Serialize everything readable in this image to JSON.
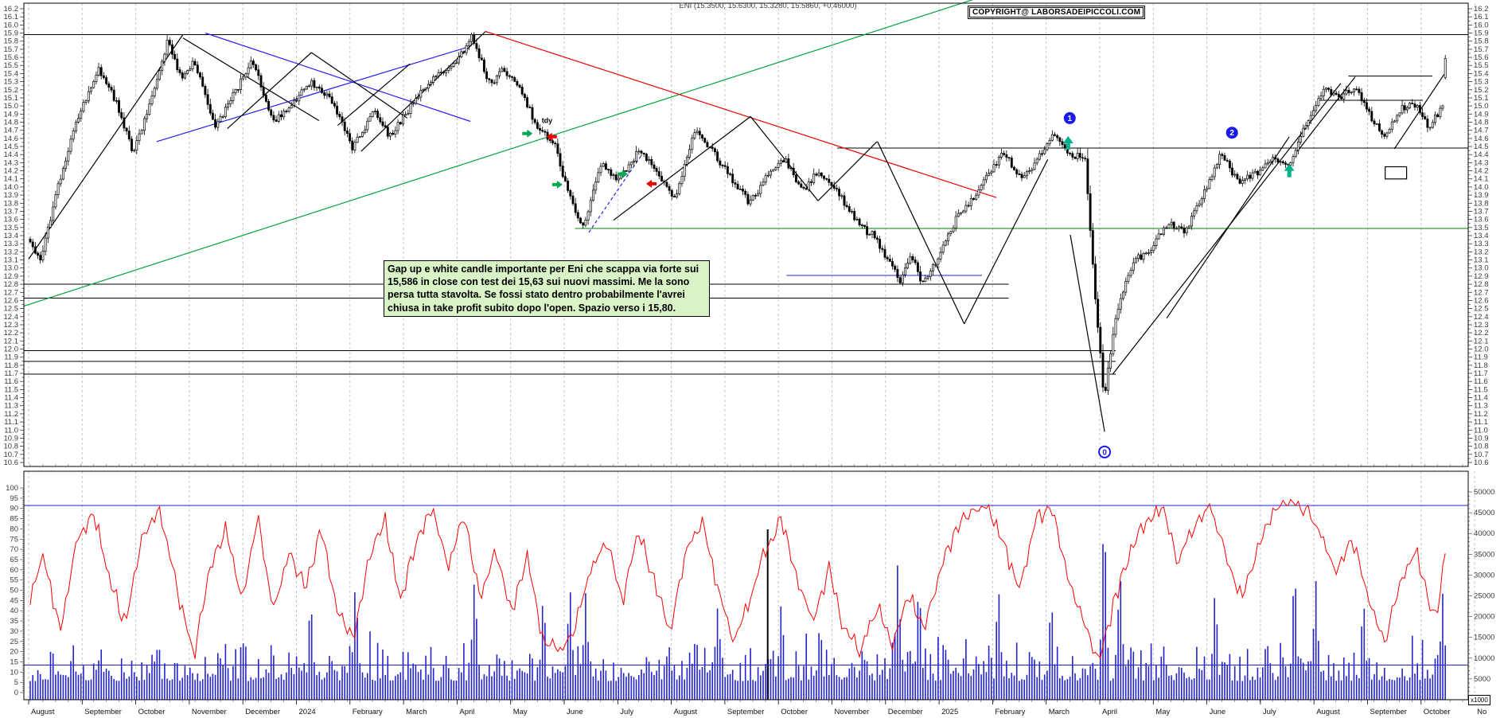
{
  "header": {
    "title": "ENI (15.3500, 15.6300, 15.3280, 15.5860, +0.46000)",
    "copyright": "COPYRIGHT@ LABORSADEIPICCOLI.COM"
  },
  "annotation": {
    "text": "Gap up e white candle importante per Eni che scappa via forte sui 15,586 in close  con test dei 15,63 sui nuovi massimi. Me la sono persa tutta stavolta. Se fossi stato dentro probabilmente l'avrei chiusa in take profit subito dopo l'open. Spazio verso i 15,80."
  },
  "colors": {
    "up_candle": "#ffffff",
    "down_candle": "#000000",
    "candle_stroke": "#000000",
    "green_line": "#00a33c",
    "green_hline": "#057f05",
    "red_line": "#ee0000",
    "blue_line": "#2222ee",
    "volume_bar": "#2424cc",
    "threshold_blue": "#2222cc",
    "oscillator": "#ff0000",
    "gridline": "#c4c4c4",
    "axis_text": "#3a3a3a",
    "marker_blue": "#1a1aee",
    "buy_arrow": "#00a84f",
    "sell_arrow": "#f00000",
    "teal_arrow": "#00b08a"
  },
  "chart_data": {
    "type": "candlestick",
    "title": "ENI (15.3500, 15.6300, 15.3280, 15.5860, +0.46000)",
    "last_quote": {
      "open": 15.35,
      "high": 15.63,
      "low": 15.328,
      "close": 15.586,
      "change": "+0.46000"
    },
    "months": [
      "August",
      "September",
      "October",
      "November",
      "December",
      "2024",
      "February",
      "March",
      "April",
      "May",
      "June",
      "July",
      "August",
      "September",
      "October",
      "November",
      "December",
      "2025",
      "February",
      "March",
      "April",
      "May",
      "June",
      "July",
      "August",
      "September",
      "October",
      "No"
    ],
    "price_axis": {
      "min": 10.6,
      "max": 16.2,
      "step": 0.1,
      "sides": "both"
    },
    "oscillator_axis": {
      "min": 0,
      "max": 100,
      "step": 5,
      "side": "left"
    },
    "volume_axis": {
      "min": 0,
      "max": 50000,
      "step": 5000,
      "side": "right",
      "unit_label": "x1000"
    },
    "price_keyframes": [
      [
        0,
        13.35
      ],
      [
        0.2,
        13.08
      ],
      [
        0.5,
        13.95
      ],
      [
        0.9,
        14.85
      ],
      [
        1.3,
        15.45
      ],
      [
        1.6,
        15.08
      ],
      [
        1.95,
        14.42
      ],
      [
        2.3,
        15.1
      ],
      [
        2.6,
        15.82
      ],
      [
        2.85,
        15.35
      ],
      [
        3.1,
        15.55
      ],
      [
        3.5,
        14.72
      ],
      [
        3.85,
        15.15
      ],
      [
        4.2,
        15.55
      ],
      [
        4.6,
        14.82
      ],
      [
        4.9,
        15.0
      ],
      [
        5.3,
        15.3
      ],
      [
        5.7,
        15.05
      ],
      [
        6.1,
        14.48
      ],
      [
        6.5,
        14.95
      ],
      [
        6.8,
        14.62
      ],
      [
        7.2,
        15.0
      ],
      [
        7.6,
        15.35
      ],
      [
        8.0,
        15.5
      ],
      [
        8.35,
        15.85
      ],
      [
        8.7,
        15.25
      ],
      [
        8.95,
        15.45
      ],
      [
        9.3,
        15.15
      ],
      [
        9.6,
        14.72
      ],
      [
        9.9,
        14.55
      ],
      [
        10.15,
        13.95
      ],
      [
        10.45,
        13.5
      ],
      [
        10.8,
        14.3
      ],
      [
        11.1,
        14.05
      ],
      [
        11.5,
        14.45
      ],
      [
        11.9,
        14.15
      ],
      [
        12.2,
        13.85
      ],
      [
        12.55,
        14.7
      ],
      [
        12.9,
        14.45
      ],
      [
        13.2,
        14.15
      ],
      [
        13.6,
        13.8
      ],
      [
        13.9,
        14.1
      ],
      [
        14.25,
        14.35
      ],
      [
        14.6,
        13.95
      ],
      [
        14.9,
        14.2
      ],
      [
        15.3,
        13.9
      ],
      [
        15.7,
        13.5
      ],
      [
        15.95,
        13.4
      ],
      [
        16.2,
        13.1
      ],
      [
        16.45,
        12.85
      ],
      [
        16.65,
        13.2
      ],
      [
        16.85,
        12.8
      ],
      [
        17.15,
        13.1
      ],
      [
        17.5,
        13.6
      ],
      [
        17.85,
        13.9
      ],
      [
        18.15,
        14.2
      ],
      [
        18.4,
        14.42
      ],
      [
        18.75,
        14.1
      ],
      [
        19.05,
        14.35
      ],
      [
        19.35,
        14.68
      ],
      [
        19.65,
        14.4
      ],
      [
        19.95,
        14.35
      ],
      [
        20.1,
        12.9
      ],
      [
        20.3,
        11.4
      ],
      [
        20.55,
        12.5
      ],
      [
        20.85,
        13.1
      ],
      [
        21.15,
        13.2
      ],
      [
        21.5,
        13.55
      ],
      [
        21.85,
        13.45
      ],
      [
        22.2,
        13.95
      ],
      [
        22.5,
        14.42
      ],
      [
        22.85,
        14.05
      ],
      [
        23.15,
        14.15
      ],
      [
        23.5,
        14.35
      ],
      [
        23.8,
        14.25
      ],
      [
        24.1,
        14.75
      ],
      [
        24.45,
        15.22
      ],
      [
        24.75,
        15.1
      ],
      [
        25.05,
        15.25
      ],
      [
        25.35,
        14.85
      ],
      [
        25.6,
        14.6
      ],
      [
        25.9,
        14.95
      ],
      [
        26.15,
        15.05
      ],
      [
        26.45,
        14.72
      ],
      [
        26.6,
        14.9
      ],
      [
        26.72,
        15.0
      ],
      [
        26.8,
        15.55
      ]
    ],
    "oscillator_keyframes": [
      [
        0,
        45
      ],
      [
        0.25,
        68
      ],
      [
        0.55,
        30
      ],
      [
        0.9,
        75
      ],
      [
        1.2,
        88
      ],
      [
        1.5,
        55
      ],
      [
        1.8,
        33
      ],
      [
        2.1,
        75
      ],
      [
        2.45,
        90
      ],
      [
        2.8,
        48
      ],
      [
        3.1,
        18
      ],
      [
        3.4,
        60
      ],
      [
        3.7,
        80
      ],
      [
        4.0,
        45
      ],
      [
        4.3,
        85
      ],
      [
        4.6,
        40
      ],
      [
        4.9,
        70
      ],
      [
        5.2,
        50
      ],
      [
        5.5,
        80
      ],
      [
        5.8,
        40
      ],
      [
        6.1,
        25
      ],
      [
        6.4,
        65
      ],
      [
        6.7,
        85
      ],
      [
        7.0,
        45
      ],
      [
        7.3,
        75
      ],
      [
        7.6,
        90
      ],
      [
        7.9,
        60
      ],
      [
        8.2,
        88
      ],
      [
        8.5,
        45
      ],
      [
        8.8,
        70
      ],
      [
        9.1,
        40
      ],
      [
        9.4,
        65
      ],
      [
        9.7,
        25
      ],
      [
        10.0,
        20
      ],
      [
        10.3,
        32
      ],
      [
        10.6,
        60
      ],
      [
        10.9,
        75
      ],
      [
        11.2,
        45
      ],
      [
        11.5,
        80
      ],
      [
        11.8,
        55
      ],
      [
        12.1,
        30
      ],
      [
        12.4,
        70
      ],
      [
        12.7,
        85
      ],
      [
        13.0,
        50
      ],
      [
        13.3,
        25
      ],
      [
        13.6,
        45
      ],
      [
        13.9,
        70
      ],
      [
        14.2,
        85
      ],
      [
        14.5,
        55
      ],
      [
        14.8,
        35
      ],
      [
        15.1,
        60
      ],
      [
        15.4,
        30
      ],
      [
        15.7,
        20
      ],
      [
        16.0,
        42
      ],
      [
        16.3,
        25
      ],
      [
        16.6,
        48
      ],
      [
        16.9,
        30
      ],
      [
        17.2,
        60
      ],
      [
        17.5,
        80
      ],
      [
        17.8,
        88
      ],
      [
        18.1,
        92
      ],
      [
        18.4,
        72
      ],
      [
        18.7,
        50
      ],
      [
        19.0,
        85
      ],
      [
        19.3,
        90
      ],
      [
        19.6,
        58
      ],
      [
        19.9,
        35
      ],
      [
        20.2,
        15
      ],
      [
        20.5,
        45
      ],
      [
        20.8,
        70
      ],
      [
        21.1,
        85
      ],
      [
        21.4,
        90
      ],
      [
        21.7,
        65
      ],
      [
        22.0,
        80
      ],
      [
        22.3,
        92
      ],
      [
        22.6,
        68
      ],
      [
        22.9,
        45
      ],
      [
        23.2,
        70
      ],
      [
        23.5,
        88
      ],
      [
        23.8,
        94
      ],
      [
        24.1,
        90
      ],
      [
        24.4,
        78
      ],
      [
        24.7,
        58
      ],
      [
        25.0,
        75
      ],
      [
        25.3,
        45
      ],
      [
        25.6,
        25
      ],
      [
        25.9,
        55
      ],
      [
        26.2,
        70
      ],
      [
        26.5,
        38
      ],
      [
        26.65,
        45
      ],
      [
        26.8,
        85
      ]
    ],
    "oscillator_threshold_lines": [
      91.5,
      13.5
    ],
    "volume_spikes": [
      [
        5.3,
        26000
      ],
      [
        6.15,
        30000
      ],
      [
        8.4,
        31000
      ],
      [
        9.7,
        27000
      ],
      [
        10.2,
        29000
      ],
      [
        10.5,
        26000
      ],
      [
        13.0,
        24000
      ],
      [
        14.2,
        25000
      ],
      [
        16.4,
        34000
      ],
      [
        16.8,
        30000
      ],
      [
        18.3,
        29000
      ],
      [
        19.3,
        26000
      ],
      [
        20.3,
        48000
      ],
      [
        20.6,
        33000
      ],
      [
        22.4,
        28000
      ],
      [
        23.9,
        34000
      ],
      [
        24.3,
        30000
      ],
      [
        25.2,
        26000
      ],
      [
        26.7,
        26000
      ]
    ],
    "volume_black_spike": {
      "mi": 13.8,
      "value": 41000
    },
    "hlines": [
      {
        "p": 15.88,
        "a": -0.09,
        "b": 26.9,
        "c": "black"
      },
      {
        "p": 14.48,
        "a": 15.1,
        "b": 26.9,
        "c": "black"
      },
      {
        "p": 13.49,
        "a": 10.2,
        "b": 26.9,
        "c": "green"
      },
      {
        "p": 12.91,
        "a": 14.15,
        "b": 17.8,
        "c": "blue"
      },
      {
        "p": 12.8,
        "a": -0.09,
        "b": 18.3,
        "c": "black"
      },
      {
        "p": 12.63,
        "a": -0.09,
        "b": 18.3,
        "c": "black"
      },
      {
        "p": 11.98,
        "a": -0.09,
        "b": 20.3,
        "c": "black"
      },
      {
        "p": 11.85,
        "a": -0.09,
        "b": 20.3,
        "c": "black"
      },
      {
        "p": 11.69,
        "a": -0.09,
        "b": 20.3,
        "c": "black"
      },
      {
        "p": 15.37,
        "a": 24.64,
        "b": 26.21,
        "c": "black"
      },
      {
        "p": 15.07,
        "a": 24.1,
        "b": 26.03,
        "c": "black"
      }
    ],
    "trendlines": [
      {
        "a": -0.09,
        "p1": 12.53,
        "b": 17.62,
        "p2": 16.31,
        "c": "green"
      },
      {
        "a": 0,
        "p1": 13.11,
        "b": 2.88,
        "p2": 15.88,
        "c": "black"
      },
      {
        "a": 2.88,
        "p1": 15.84,
        "b": 5.42,
        "p2": 14.82,
        "c": "black"
      },
      {
        "a": 2.39,
        "p1": 14.56,
        "b": 8.16,
        "p2": 15.72,
        "c": "blue"
      },
      {
        "a": 3.3,
        "p1": 15.9,
        "b": 8.25,
        "p2": 14.81,
        "c": "blue"
      },
      {
        "a": 3.71,
        "p1": 14.72,
        "b": 5.28,
        "p2": 15.66,
        "c": "black"
      },
      {
        "a": 5.28,
        "p1": 15.66,
        "b": 7.07,
        "p2": 14.85,
        "c": "black"
      },
      {
        "a": 5.77,
        "p1": 14.76,
        "b": 7.12,
        "p2": 15.52,
        "c": "black"
      },
      {
        "a": 6.21,
        "p1": 14.44,
        "b": 8.53,
        "p2": 15.92,
        "c": "black"
      },
      {
        "a": 8.53,
        "p1": 15.92,
        "b": 18.07,
        "p2": 13.87,
        "c": "red"
      },
      {
        "a": 10.92,
        "p1": 13.59,
        "b": 13.48,
        "p2": 14.87,
        "c": "black"
      },
      {
        "a": 13.48,
        "p1": 14.87,
        "b": 14.74,
        "p2": 13.83,
        "c": "black"
      },
      {
        "a": 14.74,
        "p1": 13.83,
        "b": 15.84,
        "p2": 14.56,
        "c": "black"
      },
      {
        "a": 15.85,
        "p1": 14.56,
        "b": 17.47,
        "p2": 12.31,
        "c": "black"
      },
      {
        "a": 17.47,
        "p1": 12.31,
        "b": 19.03,
        "p2": 14.34,
        "c": "black"
      },
      {
        "a": 19.45,
        "p1": 13.41,
        "b": 20.09,
        "p2": 10.98,
        "c": "black"
      },
      {
        "a": 20.24,
        "p1": 11.69,
        "b": 24.5,
        "p2": 15.28,
        "c": "black"
      },
      {
        "a": 21.25,
        "p1": 12.38,
        "b": 23.54,
        "p2": 14.62,
        "c": "black"
      },
      {
        "a": 23.69,
        "p1": 14.44,
        "b": 24.77,
        "p2": 15.36,
        "c": "black"
      },
      {
        "a": 25.5,
        "p1": 14.47,
        "b": 26.43,
        "p2": 15.39,
        "c": "black"
      },
      {
        "a": 10.46,
        "p1": 13.44,
        "b": 11.44,
        "p2": 14.39,
        "c": "blue",
        "dash": true
      }
    ],
    "markers": [
      {
        "label": "1",
        "mi": 19.44,
        "p": 14.85,
        "filled": true
      },
      {
        "label": "2",
        "mi": 22.47,
        "p": 14.67,
        "filled": true
      },
      {
        "label": "0",
        "mi": 20.09,
        "p": 10.73,
        "filled": false
      }
    ],
    "arrows": [
      {
        "dir": "right",
        "mi": 9.35,
        "p": 14.66,
        "kind": "buy"
      },
      {
        "dir": "left",
        "mi": 9.73,
        "p": 14.62,
        "kind": "sell"
      },
      {
        "dir": "right",
        "mi": 9.91,
        "p": 14.03,
        "kind": "buy"
      },
      {
        "dir": "right",
        "mi": 11.13,
        "p": 14.16,
        "kind": "buy"
      },
      {
        "dir": "left",
        "mi": 11.59,
        "p": 14.04,
        "kind": "sell"
      },
      {
        "dir": "up",
        "mi": 19.41,
        "p": 14.54,
        "kind": "teal"
      },
      {
        "dir": "up",
        "mi": 23.54,
        "p": 14.2,
        "kind": "teal"
      }
    ],
    "small_text_label": {
      "text": "tdy",
      "mi": 9.58,
      "p": 14.79
    },
    "empty_box": {
      "mi": 25.33,
      "p_top": 14.25,
      "w_mi": 0.4,
      "h_p": 0.15
    }
  }
}
